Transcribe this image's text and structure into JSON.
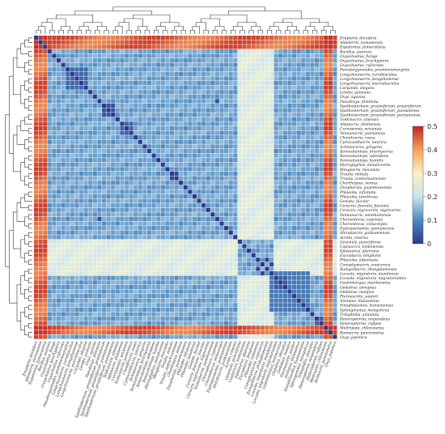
{
  "chart_data": {
    "type": "heatmap",
    "title": "",
    "xlabel": "",
    "ylabel": "",
    "species": [
      "Erupteris_dorsifera",
      "Aldaterris_vumanensis",
      "Eupatorius_fumaculatus",
      "Bacillus_aunrora",
      "Oxyachaetus_flange",
      "Oxyachaetus_brachyptera",
      "Oxyachaetus_rufocosta",
      "Pseudargynnodes_prominenmarginis",
      "Longchaunacris_curvifasculus",
      "Longchaunacris_dongshanense",
      "Longchaunacris_macrofasculus",
      "Caryanda_elegans",
      "Lemba_yunnana",
      "Oxya_agavisa",
      "Pseudoxya_diminuta",
      "Spathosternum_prasiniferum_prasiniferum",
      "Spathosternum_prasiniferum_yunnanense",
      "Spathosternum_prasiniferum_yunnanensis",
      "Tonkinacris_sinensis",
      "Aldatacris_shilinensis",
      "Curvipennis_wixiensis",
      "Yunnanacris_yunnaneus",
      "Chondracris_rosea",
      "Cyrtacanthacris_tatarica",
      "Schistocerca_gregaria",
      "Xenocatantops_brachycerus",
      "Xenocatantops_splendens",
      "Xenocatantops_humilis",
      "Hieroglyphus_annulicornis",
      "Mesglacris_maculata",
      "Traulia_minuta",
      "Traulia_szetschuanensis",
      "Chorthippus_nemus",
      "Dnopherula_yuanmowensis",
      "Phlaeoba_infumata",
      "Phlaeoba_tenebrosa",
      "Gonista_bicolor",
      "Ceracris_fasciata_fasciata",
      "Ceracris_nigricornis_nigricornis",
      "Yunnanacris_wenshanensis",
      "Choroedocus_capensis",
      "Choroedocus_violaceipes",
      "Eyprepocnemis_yunnanensis",
      "Shirakiacris_yunkweiensis",
      "Acrida_cinerea",
      "Gesonula_punctifrons",
      "Capnaccra_tonkinensis",
      "Epistaurus_aberrans",
      "Eucoptacra_binghami",
      "Phlaeoba_antennata",
      "Conophymacris_conicercia",
      "Xiangelilacris_zhongdianensis",
      "Locusta_migratoria_manilensis",
      "Locusta_migratoria_migratorioides",
      "Gastrimargus_marmoratus",
      "Oedaleus_abruptus",
      "Oedaleus_manjius",
      "Pternoscirta_sauteri",
      "Aiolopus_thalassinus",
      "Sinaphlaeobus_hunnanensis",
      "Sphingonotus_mongolicus",
      "Trilophidia_annulata",
      "Heteropternis_respondens",
      "Heteropternis_rufipes",
      "Meltripata_chloronema",
      "Bannacris_punctonotus",
      "Oxya_japonica"
    ],
    "colorbar": {
      "min": 0,
      "max": 0.5,
      "ticks": [
        0,
        0.1,
        0.2,
        0.3,
        0.4,
        0.5
      ],
      "tick_labels": [
        "0",
        "0.1",
        "0.2",
        "0.3",
        "0.4",
        "0.5"
      ]
    },
    "colorscale": [
      "#2b3a8e",
      "#4e89c1",
      "#c9e3ef",
      "#f8f3c2",
      "#f5a15e",
      "#c3251f"
    ],
    "default_distance": 0.13,
    "outgroup_indices": [
      0,
      1,
      2,
      64,
      65
    ],
    "outgroup_distance": 0.45,
    "outgroup_pair_distance": 0.49,
    "low_block_distance": 0.24,
    "low_block_range": [
      45,
      52
    ],
    "clusters": [
      {
        "from": 7,
        "to": 11,
        "distance": 0.06
      },
      {
        "from": 15,
        "to": 17,
        "distance": 0.03
      },
      {
        "from": 19,
        "to": 21,
        "distance": 0.05
      },
      {
        "from": 30,
        "to": 31,
        "distance": 0.02
      },
      {
        "from": 52,
        "to": 60,
        "distance": 0.08
      },
      {
        "from": 53,
        "to": 55,
        "distance": 0.04
      },
      {
        "from": 62,
        "to": 63,
        "distance": 0.05
      }
    ],
    "highlight_pairs": [
      [
        49,
        51,
        0.01
      ],
      [
        50,
        52,
        0.02
      ],
      [
        14,
        40,
        0.03
      ],
      [
        13,
        13,
        0.0
      ]
    ]
  }
}
